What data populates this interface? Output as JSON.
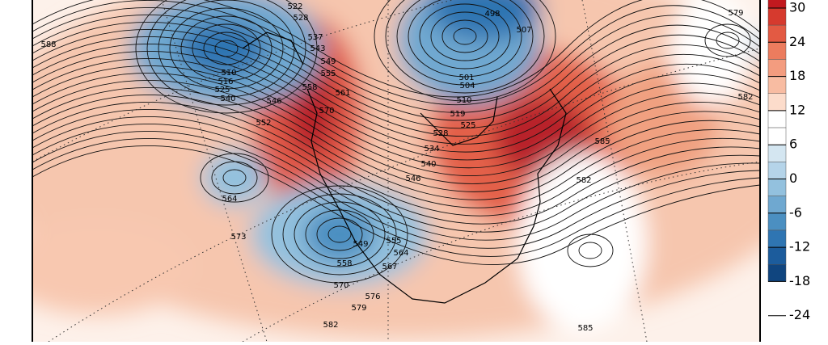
{
  "map": {
    "contour_labels": [
      588,
      522,
      528,
      537,
      543,
      549,
      555,
      558,
      561,
      570,
      510,
      516,
      525,
      540,
      546,
      552,
      564,
      573,
      498,
      507,
      501,
      504,
      510,
      519,
      525,
      528,
      534,
      540,
      546,
      549,
      555,
      564,
      567,
      558,
      570,
      576,
      579,
      582,
      585,
      582,
      585,
      579,
      582
    ],
    "colorbar": {
      "ticks": [
        30,
        24,
        18,
        12,
        6,
        0,
        -6,
        -12,
        -18,
        -24
      ],
      "colors": [
        "#a50f15",
        "#c2191f",
        "#d63a2e",
        "#e35a43",
        "#ec7c5e",
        "#f39c7f",
        "#f8bca2",
        "#fcdccb",
        "#ffffff",
        "#ffffff",
        "#d4e6f1",
        "#b5d4e9",
        "#93c1de",
        "#6fa8d0",
        "#4b8fc1",
        "#2f75b2",
        "#1c5c9c",
        "#10457f"
      ]
    }
  }
}
